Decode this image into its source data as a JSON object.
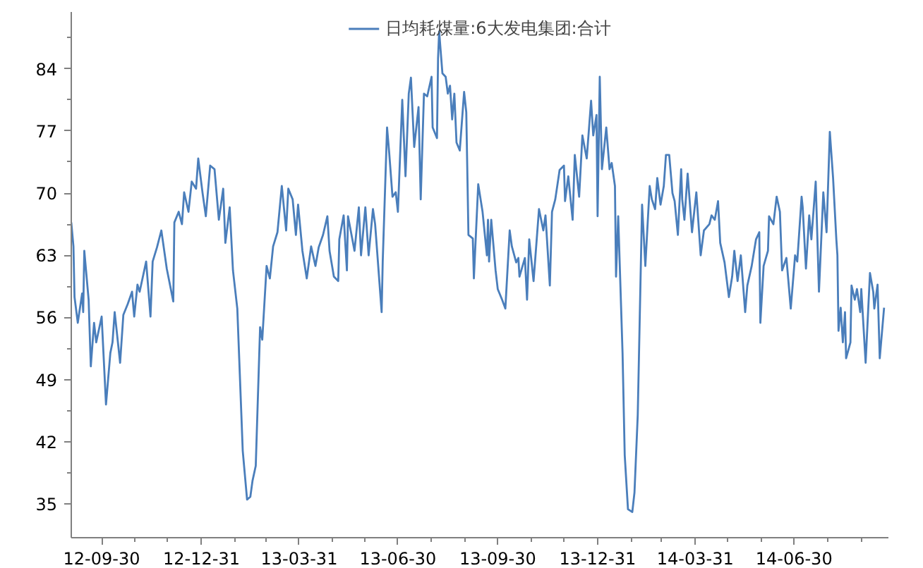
{
  "chart_data": {
    "type": "line",
    "x": [
      "2012-09-02",
      "2012-09-04",
      "2012-09-05",
      "2012-09-08",
      "2012-09-12",
      "2012-09-13",
      "2012-09-14",
      "2012-09-18",
      "2012-09-20",
      "2012-09-23",
      "2012-09-25",
      "2012-09-30",
      "2012-10-04",
      "2012-10-08",
      "2012-10-10",
      "2012-10-12",
      "2012-10-17",
      "2012-10-20",
      "2012-10-24",
      "2012-10-28",
      "2012-10-30",
      "2012-11-02",
      "2012-11-04",
      "2012-11-10",
      "2012-11-14",
      "2012-11-16",
      "2012-11-20",
      "2012-11-24",
      "2012-11-29",
      "2012-12-05",
      "2012-12-06",
      "2012-12-10",
      "2012-12-13",
      "2012-12-15",
      "2012-12-19",
      "2012-12-22",
      "2012-12-26",
      "2012-12-28",
      "2013-01-01",
      "2013-01-04",
      "2013-01-08",
      "2013-01-12",
      "2013-01-16",
      "2013-01-20",
      "2013-01-22",
      "2013-01-26",
      "2013-01-29",
      "2013-02-02",
      "2013-02-07",
      "2013-02-11",
      "2013-02-14",
      "2013-02-16",
      "2013-02-19",
      "2013-02-23",
      "2013-02-25",
      "2013-03-01",
      "2013-03-04",
      "2013-03-07",
      "2013-03-11",
      "2013-03-15",
      "2013-03-19",
      "2013-03-21",
      "2013-03-25",
      "2013-03-28",
      "2013-03-30",
      "2013-04-03",
      "2013-04-07",
      "2013-04-11",
      "2013-04-15",
      "2013-04-18",
      "2013-04-22",
      "2013-04-26",
      "2013-04-28",
      "2013-05-02",
      "2013-05-06",
      "2013-05-07",
      "2013-05-11",
      "2013-05-14",
      "2013-05-15",
      "2013-05-19",
      "2013-05-21",
      "2013-05-25",
      "2013-05-27",
      "2013-05-31",
      "2013-06-03",
      "2013-06-07",
      "2013-06-09",
      "2013-06-15",
      "2013-06-16",
      "2013-06-20",
      "2013-06-22",
      "2013-06-25",
      "2013-06-28",
      "2013-06-30",
      "2013-07-04",
      "2013-07-07",
      "2013-07-10",
      "2013-07-12",
      "2013-07-15",
      "2013-07-19",
      "2013-07-21",
      "2013-07-24",
      "2013-07-27",
      "2013-07-31",
      "2013-08-01",
      "2013-08-05",
      "2013-08-06",
      "2013-08-07",
      "2013-08-10",
      "2013-08-13",
      "2013-08-15",
      "2013-08-17",
      "2013-08-19",
      "2013-08-21",
      "2013-08-23",
      "2013-08-26",
      "2013-08-30",
      "2013-09-01",
      "2013-09-03",
      "2013-09-07",
      "2013-09-08",
      "2013-09-12",
      "2013-09-16",
      "2013-09-20",
      "2013-09-21",
      "2013-09-22",
      "2013-09-24",
      "2013-09-28",
      "2013-09-30",
      "2013-10-04",
      "2013-10-07",
      "2013-10-11",
      "2013-10-13",
      "2013-10-17",
      "2013-10-19",
      "2013-10-20",
      "2013-10-25",
      "2013-10-27",
      "2013-10-29",
      "2013-11-02",
      "2013-11-07",
      "2013-11-11",
      "2013-11-13",
      "2013-11-17",
      "2013-11-19",
      "2013-11-22",
      "2013-11-26",
      "2013-11-30",
      "2013-12-01",
      "2013-12-04",
      "2013-12-08",
      "2013-12-10",
      "2013-12-14",
      "2013-12-17",
      "2013-12-21",
      "2013-12-25",
      "2013-12-27",
      "2013-12-30",
      "2013-12-31",
      "2014-01-02",
      "2014-01-04",
      "2014-01-08",
      "2014-01-11",
      "2014-01-13",
      "2014-01-16",
      "2014-01-17",
      "2014-01-19",
      "2014-01-23",
      "2014-01-25",
      "2014-01-28",
      "2014-02-01",
      "2014-02-03",
      "2014-02-06",
      "2014-02-10",
      "2014-02-13",
      "2014-02-17",
      "2014-02-19",
      "2014-02-22",
      "2014-02-24",
      "2014-02-27",
      "2014-03-02",
      "2014-03-04",
      "2014-03-07",
      "2014-03-10",
      "2014-03-12",
      "2014-03-15",
      "2014-03-18",
      "2014-03-19",
      "2014-03-21",
      "2014-03-24",
      "2014-03-28",
      "2014-04-01",
      "2014-04-05",
      "2014-04-08",
      "2014-04-13",
      "2014-04-15",
      "2014-04-18",
      "2014-04-21",
      "2014-04-23",
      "2014-04-27",
      "2014-05-01",
      "2014-05-04",
      "2014-05-06",
      "2014-05-09",
      "2014-05-12",
      "2014-05-16",
      "2014-05-18",
      "2014-05-22",
      "2014-05-26",
      "2014-05-29",
      "2014-05-30",
      "2014-06-02",
      "2014-06-06",
      "2014-06-07",
      "2014-06-11",
      "2014-06-14",
      "2014-06-17",
      "2014-06-19",
      "2014-06-23",
      "2014-06-27",
      "2014-07-01",
      "2014-07-03",
      "2014-07-07",
      "2014-07-08",
      "2014-07-11",
      "2014-07-14",
      "2014-07-16",
      "2014-07-20",
      "2014-07-23",
      "2014-07-27",
      "2014-07-30",
      "2014-08-02",
      "2014-08-05",
      "2014-08-08",
      "2014-08-09",
      "2014-08-10",
      "2014-08-12",
      "2014-08-14",
      "2014-08-16",
      "2014-08-17",
      "2014-08-21",
      "2014-08-22",
      "2014-08-25",
      "2014-08-27",
      "2014-08-30",
      "2014-08-31",
      "2014-09-04",
      "2014-09-08",
      "2014-09-11",
      "2014-09-12",
      "2014-09-15",
      "2014-09-17",
      "2014-09-21"
    ],
    "series": [
      {
        "name": "日均耗煤量:6大发电集团:合计",
        "color": "#4a7ebb",
        "values": [
          66.7,
          64,
          58.3,
          55.4,
          58.7,
          56.6,
          63.5,
          58,
          50.5,
          55.4,
          53.2,
          56.1,
          46.2,
          52,
          53.2,
          56.6,
          50.9,
          56.3,
          57.5,
          58.9,
          56.1,
          59.7,
          58.9,
          62.3,
          56.1,
          62.3,
          63.9,
          65.8,
          61.5,
          57.8,
          66.7,
          67.9,
          66.5,
          70.1,
          67.9,
          71.3,
          70.5,
          73.9,
          70,
          67.4,
          73.1,
          72.7,
          67,
          70.5,
          64.4,
          68.4,
          61.3,
          57,
          41,
          35.5,
          35.8,
          37.6,
          39.3,
          54.9,
          53.5,
          61.8,
          60.4,
          64,
          65.6,
          70.8,
          65.8,
          70.5,
          69.3,
          65.3,
          68.7,
          63.5,
          60.4,
          64,
          61.8,
          63.9,
          65.3,
          67.4,
          63.5,
          60.6,
          60.1,
          64.8,
          67.5,
          61.3,
          67.4,
          64.8,
          63.5,
          68.4,
          63,
          68.4,
          63,
          68.2,
          66.5,
          56.6,
          62.3,
          77.4,
          74.5,
          69.6,
          70.1,
          67.9,
          80.5,
          71.9,
          81.2,
          83,
          75.2,
          79.7,
          69.3,
          81.2,
          80.9,
          83.1,
          77.4,
          76.2,
          85.2,
          88.2,
          83.5,
          83.1,
          81.2,
          82.1,
          78.3,
          81.2,
          75.7,
          74.8,
          81.4,
          79.1,
          65.3,
          64.9,
          60.4,
          71,
          67.9,
          63,
          67,
          62.3,
          67,
          61.3,
          59.2,
          58,
          57,
          65.8,
          64,
          62.2,
          62.7,
          60.6,
          62.7,
          58,
          64.8,
          60.1,
          68.2,
          65.8,
          67.5,
          59.6,
          67.9,
          69.3,
          72.6,
          73.1,
          69.1,
          71.9,
          67,
          74.3,
          69.6,
          76.5,
          73.9,
          80.4,
          76.5,
          78.8,
          67.4,
          83.1,
          72.7,
          77.4,
          72.7,
          73.4,
          70.8,
          60.6,
          67.4,
          52,
          40.5,
          34.4,
          34.1,
          36.3,
          45,
          68.7,
          61.8,
          70.8,
          69.3,
          68.2,
          71.7,
          68.7,
          70.8,
          74.3,
          74.3,
          70,
          69.1,
          65.3,
          72.7,
          69.3,
          67,
          72.2,
          65.6,
          70.1,
          63,
          65.8,
          66.5,
          67.5,
          67,
          69.1,
          64.4,
          62.2,
          58.3,
          60.6,
          63.5,
          60.1,
          63,
          56.6,
          59.6,
          61.8,
          64.8,
          65.6,
          55.4,
          61.8,
          63.5,
          67.4,
          66.5,
          69.6,
          67.9,
          61.3,
          62.7,
          57,
          63,
          62.3,
          69.6,
          68.4,
          61.5,
          67.5,
          64.8,
          71.3,
          58.9,
          70.1,
          65.6,
          76.9,
          71.7,
          64.8,
          63,
          54.5,
          57.1,
          53.2,
          56.6,
          51.4,
          53.2,
          59.6,
          58,
          59.2,
          56.6,
          59.2,
          50.9,
          61,
          58.9,
          57,
          59.7,
          51.4,
          57.1
        ]
      }
    ],
    "xlim": [
      "2012-09-02",
      "2014-09-25"
    ],
    "xticks": [
      {
        "value": "2012-09-30",
        "label": "12-09-30"
      },
      {
        "value": "2012-10-31",
        "label": null
      },
      {
        "value": "2012-11-30",
        "label": null
      },
      {
        "value": "2012-12-31",
        "label": "12-12-31"
      },
      {
        "value": "2013-01-31",
        "label": null
      },
      {
        "value": "2013-02-28",
        "label": null
      },
      {
        "value": "2013-03-31",
        "label": "13-03-31"
      },
      {
        "value": "2013-04-30",
        "label": null
      },
      {
        "value": "2013-05-31",
        "label": null
      },
      {
        "value": "2013-06-30",
        "label": "13-06-30"
      },
      {
        "value": "2013-07-31",
        "label": null
      },
      {
        "value": "2013-08-31",
        "label": null
      },
      {
        "value": "2013-09-30",
        "label": "13-09-30"
      },
      {
        "value": "2013-10-31",
        "label": null
      },
      {
        "value": "2013-11-30",
        "label": null
      },
      {
        "value": "2013-12-31",
        "label": "13-12-31"
      },
      {
        "value": "2014-01-31",
        "label": null
      },
      {
        "value": "2014-02-28",
        "label": null
      },
      {
        "value": "2014-03-31",
        "label": "14-03-31"
      },
      {
        "value": "2014-04-30",
        "label": null
      },
      {
        "value": "2014-05-31",
        "label": null
      },
      {
        "value": "2014-06-30",
        "label": "14-06-30"
      },
      {
        "value": "2014-07-31",
        "label": null
      },
      {
        "value": "2014-08-31",
        "label": null
      }
    ],
    "ylim": [
      31.2,
      90.4
    ],
    "yticks": [
      35,
      {
        "value": 38.5,
        "label": null
      },
      42,
      {
        "value": 45.5,
        "label": null
      },
      49,
      {
        "value": 52.5,
        "label": null
      },
      56,
      {
        "value": 59.5,
        "label": null
      },
      63,
      {
        "value": 66.5,
        "label": null
      },
      70,
      {
        "value": 73.5,
        "label": null
      },
      77,
      {
        "value": 80.5,
        "label": null
      },
      84,
      {
        "value": 87.5,
        "label": null
      }
    ],
    "legend": "top",
    "grid": false,
    "line_style": "solid"
  }
}
